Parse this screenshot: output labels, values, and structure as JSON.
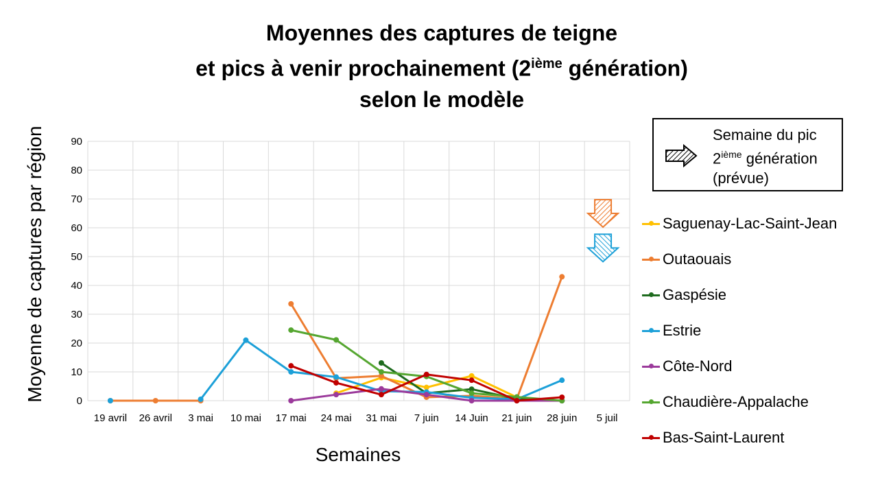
{
  "chart_data": {
    "type": "line",
    "title": [
      "Moyennes des captures de teigne",
      "et pics à venir prochainement (2",
      "ième",
      " génération)",
      "selon le modèle"
    ],
    "xlabel": "Semaines",
    "ylabel": "Moyenne de captures par région",
    "ylim": [
      0,
      90
    ],
    "yticks": [
      0,
      10,
      20,
      30,
      40,
      50,
      60,
      70,
      80,
      90
    ],
    "grid": true,
    "legend_position": "right",
    "categories": [
      "19 avril",
      "26 avril",
      "3 mai",
      "10 mai",
      "17 mai",
      "24 mai",
      "31 mai",
      "7 juin",
      "14 Juin",
      "21 juin",
      "28 juin",
      "5 juil"
    ],
    "series": [
      {
        "name": "Saguenay-Lac-Saint-Jean",
        "color": "#FFC000",
        "values": [
          null,
          null,
          null,
          null,
          null,
          2.6,
          8,
          4.6,
          8.6,
          1.2,
          null,
          null
        ]
      },
      {
        "name": "Outaouais",
        "color": "#ED7D31",
        "values": [
          0,
          0,
          0,
          null,
          33.6,
          7.8,
          8.6,
          1.2,
          1.7,
          0.6,
          43,
          null
        ]
      },
      {
        "name": "Gaspésie",
        "color": "#1E6B1E",
        "values": [
          null,
          null,
          null,
          null,
          null,
          null,
          13.1,
          2.6,
          4,
          0.6,
          0,
          null
        ]
      },
      {
        "name": "Estrie",
        "color": "#1CA0D8",
        "values": [
          0,
          null,
          0.5,
          21,
          10,
          8.2,
          3.3,
          3,
          1,
          0.5,
          7.1,
          null
        ]
      },
      {
        "name": "Côte-Nord",
        "color": "#9B3A9B",
        "values": [
          null,
          null,
          null,
          null,
          0,
          2.1,
          4.1,
          2.1,
          0,
          0,
          0,
          null
        ]
      },
      {
        "name": "Chaudière-Appalache",
        "color": "#55A630",
        "values": [
          null,
          null,
          null,
          null,
          24.5,
          21.1,
          10,
          8.4,
          2.6,
          1.3,
          0,
          null
        ]
      },
      {
        "name": "Bas-Saint-Laurent",
        "color": "#C00000",
        "values": [
          null,
          null,
          null,
          null,
          12.1,
          6.2,
          2.1,
          9.1,
          7.1,
          0,
          1.2,
          null
        ]
      }
    ],
    "peak_arrows": [
      {
        "color": "#ED7D31",
        "week": "5 juil",
        "level": 65
      },
      {
        "color": "#1CA0D8",
        "week": "5 juil",
        "level": 53
      }
    ],
    "peak_legend": {
      "line1": "Semaine du pic",
      "line2a": "2",
      "line2sup": "ième",
      "line2b": " génération",
      "line3": "(prévue)"
    }
  }
}
